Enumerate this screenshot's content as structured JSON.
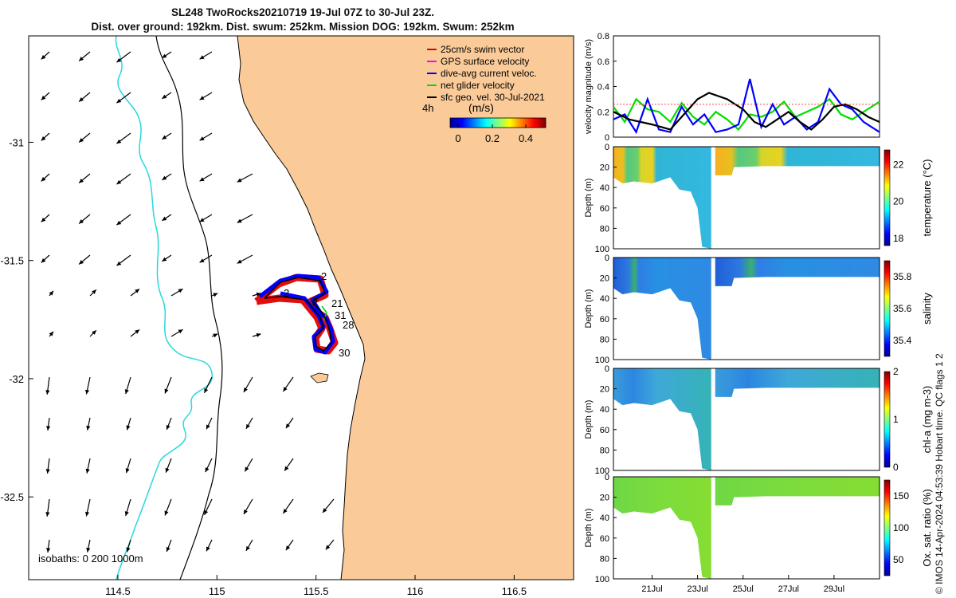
{
  "header": {
    "title_line1": "SL248 TwoRocks20210719 19-Jul 07Z to 30-Jul 23Z.",
    "title_line2": "Dist. over ground: 192km. Dist. swum: 252km. Mission DOG: 192km. Swum: 252km"
  },
  "map": {
    "land_color": "#FACB99",
    "x_ticks": [
      114.5,
      115,
      115.5,
      116,
      116.5
    ],
    "y_ticks": [
      -31,
      -31.5,
      -32,
      -32.5
    ],
    "xlim": [
      114.05,
      116.8
    ],
    "ylim": [
      -32.85,
      -30.55
    ],
    "legend": [
      {
        "label": "25cm/s swim vector",
        "color": "#e00000"
      },
      {
        "label": "GPS surface velocity",
        "color": "#ff00ff"
      },
      {
        "label": "dive-avg current veloc.",
        "color": "#0000ff"
      },
      {
        "label": "net glider velocity",
        "color": "#00dd00"
      },
      {
        "label": "sfc geo. vel. 30-Jul-2021",
        "color": "#000000"
      }
    ],
    "colorbar_label": "(m/s)",
    "colorbar_ticks": [
      "0",
      "0.2",
      "0.4"
    ],
    "time_label": "4h",
    "isobath_label": "isobaths: 0   200  1000m",
    "day_labels": [
      "2",
      "2",
      "2",
      "21",
      "31",
      "28",
      "30"
    ]
  },
  "chart_data": [
    {
      "type": "line",
      "ylabel": "velocity magnitude (m/s)",
      "ylim": [
        0,
        0.8
      ],
      "y_ticks": [
        "0",
        "0.2",
        "0.4",
        "0.6",
        "0.8"
      ],
      "x_days": [
        19.3,
        31.0
      ],
      "series": [
        {
          "color": "#00dd00",
          "x": [
            19.3,
            19.8,
            20.3,
            20.8,
            21.3,
            21.8,
            22.3,
            22.8,
            23.3,
            23.8,
            24.3,
            24.8,
            25.3,
            25.8,
            26.3,
            26.8,
            27.3,
            27.8,
            28.3,
            28.8,
            29.3,
            29.8,
            30.3,
            31.0
          ],
          "values": [
            0.24,
            0.12,
            0.3,
            0.22,
            0.2,
            0.12,
            0.27,
            0.16,
            0.1,
            0.2,
            0.14,
            0.06,
            0.18,
            0.16,
            0.2,
            0.28,
            0.16,
            0.2,
            0.24,
            0.3,
            0.18,
            0.14,
            0.2,
            0.28
          ]
        },
        {
          "color": "#0000ff",
          "x": [
            19.3,
            19.8,
            20.3,
            20.8,
            21.3,
            21.8,
            22.3,
            22.8,
            23.3,
            23.8,
            24.3,
            24.8,
            25.3,
            25.8,
            26.3,
            26.8,
            27.3,
            27.8,
            28.3,
            28.8,
            29.3,
            29.8,
            30.3,
            31.0
          ],
          "values": [
            0.14,
            0.18,
            0.04,
            0.3,
            0.06,
            0.04,
            0.24,
            0.1,
            0.18,
            0.04,
            0.06,
            0.1,
            0.46,
            0.08,
            0.26,
            0.1,
            0.16,
            0.06,
            0.12,
            0.38,
            0.26,
            0.22,
            0.12,
            0.04
          ]
        },
        {
          "color": "#000000",
          "x": [
            19.3,
            20.0,
            21.0,
            21.8,
            22.5,
            23.0,
            23.5,
            24.3,
            25.0,
            25.5,
            26.0,
            26.5,
            27.0,
            27.5,
            28.0,
            28.5,
            29.0,
            29.5,
            30.0,
            30.5,
            31.0
          ],
          "values": [
            0.2,
            0.14,
            0.1,
            0.06,
            0.2,
            0.3,
            0.35,
            0.3,
            0.22,
            0.12,
            0.08,
            0.14,
            0.2,
            0.12,
            0.06,
            0.14,
            0.24,
            0.26,
            0.22,
            0.16,
            0.12
          ]
        },
        {
          "color": "#ff4444",
          "x": [
            19.3,
            31.0
          ],
          "values": [
            0.26,
            0.26
          ]
        }
      ]
    },
    {
      "type": "heatmap",
      "ylabel": "Depth (m)",
      "colorbar_label": "temperature (°C)",
      "cbar_ticks": [
        "18",
        "20",
        "22"
      ],
      "clim": [
        17.6,
        22.8
      ]
    },
    {
      "type": "heatmap",
      "ylabel": "Depth (m)",
      "colorbar_label": "salinity",
      "cbar_ticks": [
        "35.4",
        "35.6",
        "35.8"
      ],
      "clim": [
        35.3,
        35.9
      ]
    },
    {
      "type": "heatmap",
      "ylabel": "Depth (m)",
      "colorbar_label": "chl-a (mg m-3)",
      "cbar_ticks": [
        "0",
        "1",
        "2"
      ],
      "clim": [
        0,
        2
      ]
    },
    {
      "type": "heatmap",
      "ylabel": "Depth (m)",
      "colorbar_label": "Ox. sat. ratio (%)",
      "cbar_ticks": [
        "50",
        "100",
        "150"
      ],
      "clim": [
        25,
        175
      ]
    }
  ],
  "depth_ticks": [
    "0",
    "20",
    "40",
    "60",
    "80",
    "100"
  ],
  "date_ticks": [
    "21Jul",
    "23Jul",
    "25Jul",
    "27Jul",
    "29Jul"
  ],
  "footer": {
    "credit": "© IMOS 14-Apr-2024 04:53:39 Hobart time. QC flags 1  2"
  }
}
